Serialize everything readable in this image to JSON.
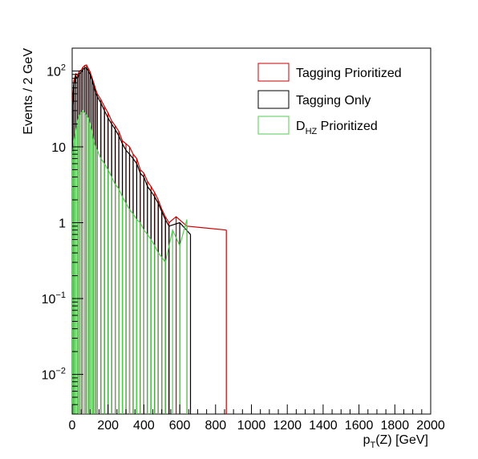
{
  "chart_data": {
    "type": "histogram",
    "title": "",
    "xlabel": "p_T(Z) [GeV]",
    "ylabel": "Events / 2 GeV",
    "xlim": [
      0,
      2000
    ],
    "ylim": [
      0.003,
      200
    ],
    "log_y": true,
    "bin_width": 2,
    "grid": false,
    "legend_position": "top-right",
    "x_ticks": [
      "0",
      "200",
      "400",
      "600",
      "800",
      "1000",
      "1200",
      "1400",
      "1600",
      "1800",
      "2000"
    ],
    "y_ticks": [
      {
        "value": 0.01,
        "base": "10",
        "exp": "−2"
      },
      {
        "value": 0.1,
        "base": "10",
        "exp": "−1"
      },
      {
        "value": 1,
        "base": "1",
        "exp": ""
      },
      {
        "value": 10,
        "base": "10",
        "exp": ""
      },
      {
        "value": 100,
        "base": "10",
        "exp": "2"
      }
    ],
    "series": [
      {
        "name": "Tagging Prioritized",
        "color": "#cc0000",
        "legend_main": "Tagging Prioritized",
        "legend_sub": "",
        "legend_suffix": "",
        "x": [
          2,
          10,
          20,
          30,
          40,
          50,
          60,
          70,
          80,
          90,
          100,
          110,
          120,
          130,
          140,
          160,
          180,
          200,
          220,
          240,
          260,
          280,
          300,
          320,
          340,
          360,
          380,
          400,
          420,
          440,
          460,
          480,
          500,
          520,
          540,
          580,
          640,
          860
        ],
        "y": [
          40,
          75,
          92,
          88,
          100,
          102,
          112,
          118,
          120,
          108,
          98,
          82,
          70,
          58,
          50,
          42,
          34,
          28,
          22,
          19,
          16,
          12,
          11,
          10,
          8,
          7,
          5,
          4.5,
          3.5,
          3,
          2.5,
          2,
          1.5,
          1.2,
          1.0,
          1.2,
          0.9,
          0.8
        ]
      },
      {
        "name": "Tagging Only",
        "color": "#000000",
        "legend_main": "Tagging Only",
        "legend_sub": "",
        "legend_suffix": "",
        "x": [
          2,
          10,
          20,
          30,
          40,
          50,
          60,
          70,
          80,
          90,
          100,
          110,
          120,
          130,
          140,
          160,
          180,
          200,
          220,
          240,
          260,
          280,
          300,
          320,
          340,
          360,
          380,
          400,
          420,
          440,
          460,
          480,
          500,
          520,
          540,
          600,
          660
        ],
        "y": [
          35,
          65,
          85,
          80,
          92,
          96,
          104,
          110,
          110,
          100,
          90,
          76,
          64,
          52,
          46,
          38,
          30,
          24,
          20,
          17,
          14,
          11,
          9,
          8,
          7,
          6,
          4.5,
          4,
          3,
          2.6,
          2.2,
          1.8,
          1.4,
          1.1,
          0.9,
          1.0,
          0.7
        ]
      },
      {
        "name": "D_HZ Prioritized",
        "color": "#55cc55",
        "legend_main": "D",
        "legend_sub": "HZ",
        "legend_suffix": " Prioritized",
        "x": [
          2,
          10,
          20,
          30,
          40,
          50,
          60,
          70,
          80,
          90,
          100,
          110,
          120,
          130,
          140,
          160,
          180,
          200,
          220,
          240,
          260,
          280,
          300,
          320,
          340,
          360,
          380,
          400,
          420,
          440,
          460,
          480,
          500,
          520,
          560,
          600,
          640
        ],
        "y": [
          8,
          12,
          16,
          22,
          26,
          28,
          30,
          28,
          26,
          24,
          20,
          16,
          12,
          10,
          9,
          7,
          6,
          5,
          4,
          3.2,
          2.8,
          2.2,
          1.8,
          1.5,
          1.3,
          1.1,
          1.0,
          0.8,
          0.7,
          0.6,
          0.5,
          0.4,
          0.35,
          0.3,
          0.8,
          0.5,
          1.1
        ]
      }
    ]
  }
}
